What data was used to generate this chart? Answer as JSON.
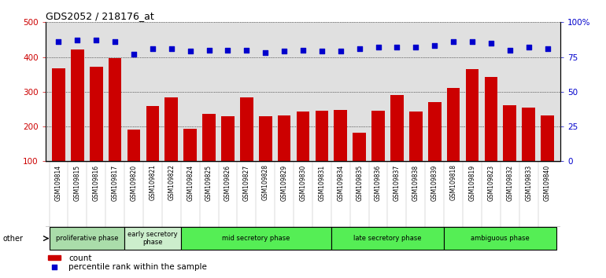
{
  "title": "GDS2052 / 218176_at",
  "samples": [
    "GSM109814",
    "GSM109815",
    "GSM109816",
    "GSM109817",
    "GSM109820",
    "GSM109821",
    "GSM109822",
    "GSM109824",
    "GSM109825",
    "GSM109826",
    "GSM109827",
    "GSM109828",
    "GSM109829",
    "GSM109830",
    "GSM109831",
    "GSM109834",
    "GSM109835",
    "GSM109836",
    "GSM109837",
    "GSM109838",
    "GSM109839",
    "GSM109818",
    "GSM109819",
    "GSM109823",
    "GSM109832",
    "GSM109833",
    "GSM109840"
  ],
  "counts": [
    368,
    422,
    372,
    396,
    192,
    260,
    283,
    193,
    237,
    230,
    283,
    230,
    232,
    243,
    245,
    247,
    183,
    246,
    290,
    244,
    271,
    310,
    365,
    342,
    261,
    255,
    231
  ],
  "percentiles": [
    86,
    87,
    87,
    86,
    77,
    81,
    81,
    79,
    80,
    80,
    80,
    78,
    79,
    80,
    79,
    79,
    81,
    82,
    82,
    82,
    83,
    86,
    86,
    85,
    80,
    82,
    81
  ],
  "bar_color": "#cc0000",
  "dot_color": "#0000cc",
  "ylim_left": [
    100,
    500
  ],
  "ylim_right": [
    0,
    100
  ],
  "yticks_left": [
    100,
    200,
    300,
    400,
    500
  ],
  "yticks_right": [
    0,
    25,
    50,
    75,
    100
  ],
  "yticklabels_right": [
    "0",
    "25",
    "50",
    "75",
    "100%"
  ],
  "phases": [
    {
      "label": "proliferative phase",
      "start": 0,
      "end": 4,
      "color": "#aaddaa"
    },
    {
      "label": "early secretory\nphase",
      "start": 4,
      "end": 7,
      "color": "#cceecc"
    },
    {
      "label": "mid secretory phase",
      "start": 7,
      "end": 15,
      "color": "#55ee55"
    },
    {
      "label": "late secretory phase",
      "start": 15,
      "end": 21,
      "color": "#55ee55"
    },
    {
      "label": "ambiguous phase",
      "start": 21,
      "end": 27,
      "color": "#55ee55"
    }
  ],
  "legend_count_label": "count",
  "legend_pct_label": "percentile rank within the sample",
  "other_label": "other",
  "grid_color": "#000000",
  "bg_color": "#e0e0e0",
  "tick_bg_color": "#cccccc",
  "fig_bg": "#ffffff"
}
